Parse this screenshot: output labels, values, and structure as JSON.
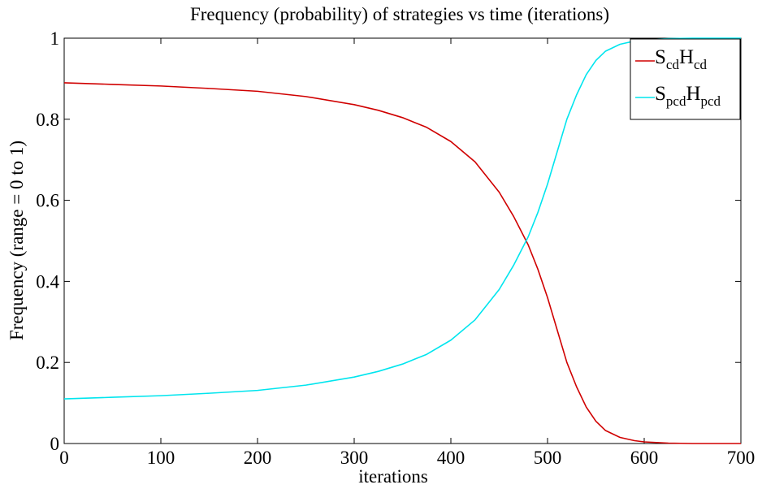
{
  "chart_data": {
    "type": "line",
    "title": "Frequency (probability) of strategies vs time (iterations)",
    "xlabel": "iterations",
    "ylabel": "Frequency (range = 0 to 1)",
    "xlim": [
      0,
      700
    ],
    "ylim": [
      0,
      1
    ],
    "xticks": [
      0,
      100,
      200,
      300,
      400,
      500,
      600,
      700
    ],
    "yticks": [
      0,
      0.2,
      0.4,
      0.6,
      0.8,
      1
    ],
    "xtick_labels": [
      "0",
      "100",
      "200",
      "300",
      "400",
      "500",
      "600",
      "700"
    ],
    "ytick_labels": [
      "0",
      "0.2",
      "0.4",
      "0.6",
      "0.8",
      "1"
    ],
    "grid": false,
    "legend_position": "top-right",
    "series": [
      {
        "legend": {
          "s_main": "S",
          "s_sub": "cd",
          "h_main": "H",
          "h_sub": "cd"
        },
        "color": "#d00000",
        "x": [
          0,
          50,
          100,
          150,
          200,
          250,
          300,
          325,
          350,
          375,
          400,
          425,
          450,
          465,
          480,
          490,
          500,
          510,
          520,
          530,
          540,
          550,
          560,
          575,
          590,
          600,
          625,
          650,
          675,
          700
        ],
        "y": [
          0.89,
          0.886,
          0.882,
          0.876,
          0.869,
          0.856,
          0.836,
          0.822,
          0.804,
          0.78,
          0.745,
          0.695,
          0.62,
          0.56,
          0.49,
          0.43,
          0.36,
          0.28,
          0.2,
          0.14,
          0.09,
          0.055,
          0.032,
          0.015,
          0.007,
          0.004,
          0.001,
          0.0,
          0.0,
          0.0
        ]
      },
      {
        "legend": {
          "s_main": "S",
          "s_sub": "pcd",
          "h_main": "H",
          "h_sub": "pcd"
        },
        "color": "#00e5ee",
        "x": [
          0,
          50,
          100,
          150,
          200,
          250,
          300,
          325,
          350,
          375,
          400,
          425,
          450,
          465,
          480,
          490,
          500,
          510,
          520,
          530,
          540,
          550,
          560,
          575,
          590,
          600,
          625,
          650,
          675,
          700
        ],
        "y": [
          0.11,
          0.114,
          0.118,
          0.124,
          0.131,
          0.144,
          0.164,
          0.178,
          0.196,
          0.22,
          0.255,
          0.305,
          0.38,
          0.44,
          0.51,
          0.57,
          0.64,
          0.72,
          0.8,
          0.86,
          0.91,
          0.945,
          0.968,
          0.985,
          0.993,
          0.996,
          0.999,
          1.0,
          1.0,
          1.0
        ]
      }
    ]
  }
}
